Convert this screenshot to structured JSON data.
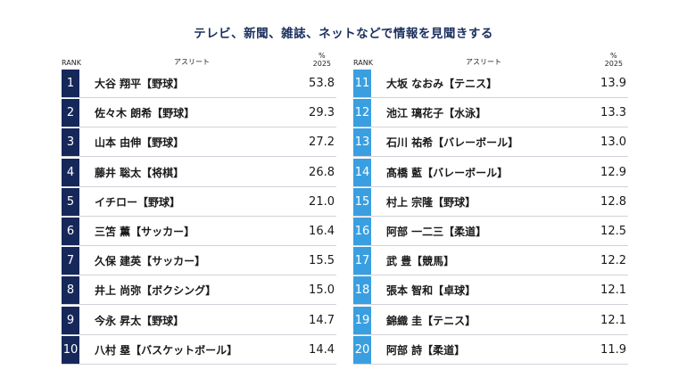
{
  "title": "テレビ、新聞、雑誌、ネットなどで情報を見聞きする",
  "header": {
    "rank": "RANK",
    "athlete": "アスリート",
    "unit": "%",
    "year": "2025"
  },
  "colors": {
    "left_rank_bg": "#16275a",
    "right_rank_bg": "#3a9fe0",
    "title": "#1b2f5e"
  },
  "chart_data": {
    "type": "table",
    "title": "テレビ、新聞、雑誌、ネットなどで情報を見聞きする",
    "columns": [
      "RANK",
      "アスリート",
      "% 2025"
    ],
    "rows": [
      {
        "rank": "1",
        "name": "大谷 翔平【野球】",
        "value": "53.8"
      },
      {
        "rank": "2",
        "name": "佐々木 朗希【野球】",
        "value": "29.3"
      },
      {
        "rank": "3",
        "name": "山本 由伸【野球】",
        "value": "27.2"
      },
      {
        "rank": "4",
        "name": "藤井 聡太【将棋】",
        "value": "26.8"
      },
      {
        "rank": "5",
        "name": "イチロー【野球】",
        "value": "21.0"
      },
      {
        "rank": "6",
        "name": "三笘 薫【サッカー】",
        "value": "16.4"
      },
      {
        "rank": "7",
        "name": "久保 建英【サッカー】",
        "value": "15.5"
      },
      {
        "rank": "8",
        "name": "井上 尚弥【ボクシング】",
        "value": "15.0"
      },
      {
        "rank": "9",
        "name": "今永 昇太【野球】",
        "value": "14.7"
      },
      {
        "rank": "10",
        "name": "八村 塁【バスケットボール】",
        "value": "14.4"
      },
      {
        "rank": "11",
        "name": "大坂 なおみ【テニス】",
        "value": "13.9"
      },
      {
        "rank": "12",
        "name": "池江 璃花子【水泳】",
        "value": "13.3"
      },
      {
        "rank": "13",
        "name": "石川 祐希【バレーボール】",
        "value": "13.0"
      },
      {
        "rank": "14",
        "name": "髙橋 藍【バレーボール】",
        "value": "12.9"
      },
      {
        "rank": "15",
        "name": "村上 宗隆【野球】",
        "value": "12.8"
      },
      {
        "rank": "16",
        "name": "阿部 一二三【柔道】",
        "value": "12.5"
      },
      {
        "rank": "17",
        "name": "武 豊【競馬】",
        "value": "12.2"
      },
      {
        "rank": "18",
        "name": "張本 智和【卓球】",
        "value": "12.1"
      },
      {
        "rank": "19",
        "name": "錦織 圭【テニス】",
        "value": "12.1"
      },
      {
        "rank": "20",
        "name": "阿部 詩【柔道】",
        "value": "11.9"
      }
    ]
  }
}
